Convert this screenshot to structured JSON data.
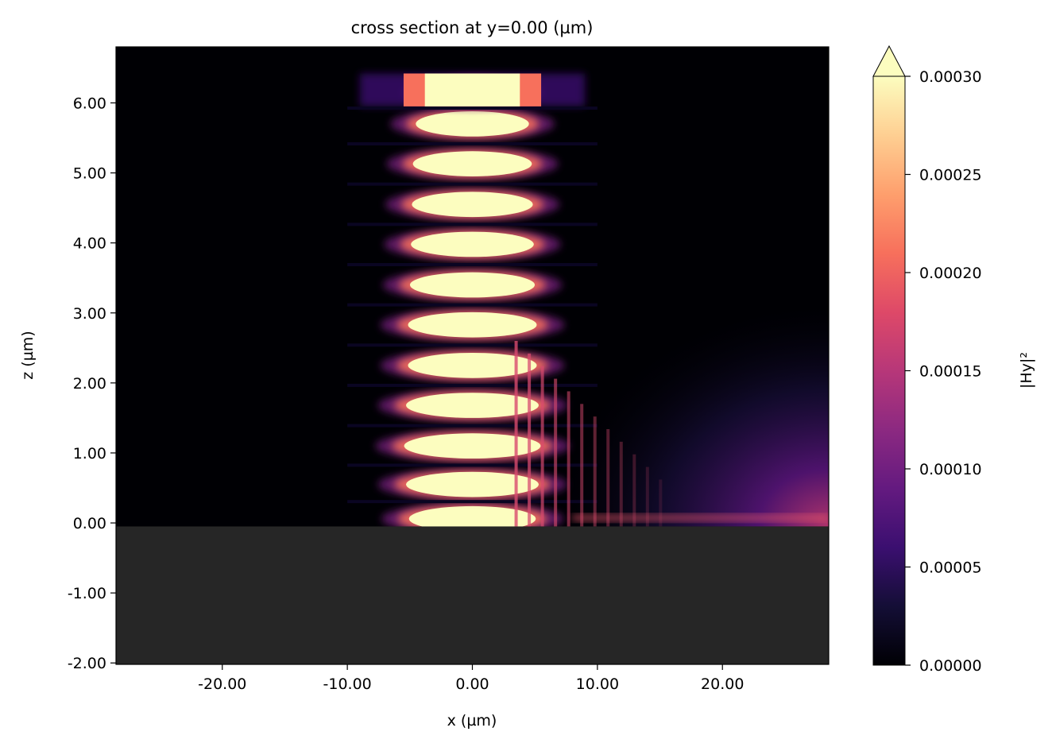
{
  "chart_data": {
    "type": "heatmap",
    "title": "cross section at y=0.00 (µm)",
    "xlabel": "x (µm)",
    "ylabel": "z (µm)",
    "xlim": [
      -28.5,
      28.5
    ],
    "ylim": [
      -2.02,
      6.8
    ],
    "xticks": [
      -20,
      -10,
      0,
      10,
      20
    ],
    "xtick_labels": [
      "-20.00",
      "-10.00",
      "0.00",
      "10.00",
      "20.00"
    ],
    "yticks": [
      -2,
      -1,
      0,
      1,
      2,
      3,
      4,
      5,
      6
    ],
    "ytick_labels": [
      "-2.00",
      "-1.00",
      "0.00",
      "1.00",
      "2.00",
      "3.00",
      "4.00",
      "5.00",
      "6.00"
    ],
    "substrate": {
      "z_top": -0.05,
      "color": "#262626"
    },
    "colormap": "magma",
    "colorbar": {
      "label": "|Hy|²",
      "vmin": 0.0,
      "vmax": 0.0003,
      "extend": "max",
      "ticks": [
        0.0,
        5e-05,
        0.0001,
        0.00015,
        0.0002,
        0.00025,
        0.0003
      ],
      "tick_labels": [
        "0.00000",
        "0.00005",
        "0.00010",
        "0.00015",
        "0.00020",
        "0.00025",
        "0.00030"
      ]
    },
    "field_bands": [
      {
        "z": 0.06,
        "half_width": 6.5
      },
      {
        "z": 0.55,
        "half_width": 6.8
      },
      {
        "z": 1.1,
        "half_width": 7.0
      },
      {
        "z": 1.68,
        "half_width": 6.8
      },
      {
        "z": 2.25,
        "half_width": 6.6
      },
      {
        "z": 2.83,
        "half_width": 6.6
      },
      {
        "z": 3.4,
        "half_width": 6.4
      },
      {
        "z": 3.98,
        "half_width": 6.3
      },
      {
        "z": 4.55,
        "half_width": 6.2
      },
      {
        "z": 5.13,
        "half_width": 6.1
      },
      {
        "z": 5.7,
        "half_width": 5.8
      },
      {
        "z": 6.15,
        "half_width": 4.8
      }
    ]
  }
}
